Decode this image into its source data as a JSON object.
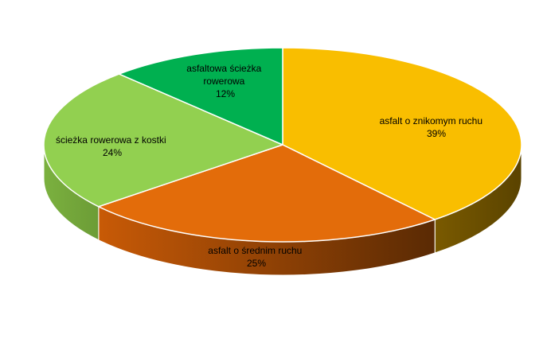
{
  "chart_data": {
    "type": "pie",
    "style": "3d",
    "title": "",
    "slices": [
      {
        "label": "asfalt o znikomym ruchu",
        "value": 39,
        "percent_label": "39%",
        "color": "#F9BE00",
        "side_color": "#6B4F00"
      },
      {
        "label": "asfalt o średnim ruchu",
        "value": 25,
        "percent_label": "25%",
        "color": "#E36C0A",
        "side_color": "#9A4508"
      },
      {
        "label": "ścieżka rowerowa z kostki",
        "value": 24,
        "percent_label": "24%",
        "color": "#92D050",
        "side_color": "#6E9E3C"
      },
      {
        "label": "asfaltowa ścieżka rowerowa",
        "value": 12,
        "percent_label": "12%",
        "color": "#00B050",
        "side_color": "#007A38"
      }
    ]
  }
}
